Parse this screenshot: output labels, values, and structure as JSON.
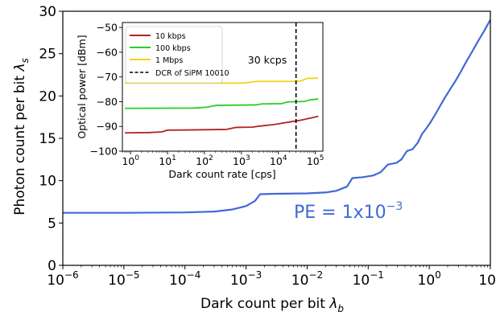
{
  "chart_data": [
    {
      "type": "line",
      "xlabel_main": "Dark count per bit ",
      "xlabel_sym": "λ",
      "xlabel_sub": "b",
      "ylabel_main": "Photon count per bit ",
      "ylabel_sym": "λ",
      "ylabel_sub": "s",
      "x_scale": "log",
      "xlim": [
        1e-06,
        10
      ],
      "ylim": [
        0,
        30
      ],
      "x_ticks": [
        {
          "base": "10",
          "exp": "−6",
          "value": 1e-06
        },
        {
          "base": "10",
          "exp": "−5",
          "value": 1e-05
        },
        {
          "base": "10",
          "exp": "−4",
          "value": 0.0001
        },
        {
          "base": "10",
          "exp": "−3",
          "value": 0.001
        },
        {
          "base": "10",
          "exp": "−2",
          "value": 0.01
        },
        {
          "base": "10",
          "exp": "−1",
          "value": 0.1
        },
        {
          "base": "10",
          "exp": "0",
          "value": 1
        },
        {
          "base": "10",
          "exp": "1",
          "value": 10
        }
      ],
      "y_ticks": [
        "0",
        "5",
        "10",
        "15",
        "20",
        "25",
        "30"
      ],
      "annotation": {
        "prefix": "PE = 1x10",
        "exp": "−3"
      },
      "series": [
        {
          "color": "#4169d6",
          "points": [
            [
              1e-06,
              6.2
            ],
            [
              1e-05,
              6.2
            ],
            [
              0.0001,
              6.25
            ],
            [
              0.0003,
              6.35
            ],
            [
              0.0006,
              6.6
            ],
            [
              0.001,
              7.0
            ],
            [
              0.0014,
              7.6
            ],
            [
              0.0017,
              8.4
            ],
            [
              0.003,
              8.45
            ],
            [
              0.01,
              8.5
            ],
            [
              0.02,
              8.6
            ],
            [
              0.03,
              8.8
            ],
            [
              0.045,
              9.3
            ],
            [
              0.055,
              10.3
            ],
            [
              0.08,
              10.4
            ],
            [
              0.12,
              10.6
            ],
            [
              0.16,
              11.0
            ],
            [
              0.21,
              11.9
            ],
            [
              0.29,
              12.1
            ],
            [
              0.35,
              12.5
            ],
            [
              0.43,
              13.5
            ],
            [
              0.53,
              13.7
            ],
            [
              0.65,
              14.5
            ],
            [
              0.76,
              15.5
            ],
            [
              0.9,
              16.2
            ],
            [
              1.05,
              16.9
            ],
            [
              1.25,
              17.8
            ],
            [
              1.5,
              18.8
            ],
            [
              1.8,
              19.8
            ],
            [
              2.2,
              20.8
            ],
            [
              2.7,
              21.8
            ],
            [
              3.3,
              22.9
            ],
            [
              4.0,
              24.0
            ],
            [
              5.0,
              25.2
            ],
            [
              6.2,
              26.4
            ],
            [
              7.8,
              27.6
            ],
            [
              10,
              29.0
            ]
          ]
        }
      ]
    },
    {
      "type": "line",
      "xlabel": "Dark count rate [cps]",
      "ylabel": "Optical power [dBm]",
      "x_scale": "log",
      "xlim": [
        0.6,
        160000.0
      ],
      "ylim": [
        -100,
        -48
      ],
      "x_ticks": [
        {
          "base": "10",
          "exp": "0",
          "value": 1
        },
        {
          "base": "10",
          "exp": "1",
          "value": 10
        },
        {
          "base": "10",
          "exp": "2",
          "value": 100
        },
        {
          "base": "10",
          "exp": "3",
          "value": 1000
        },
        {
          "base": "10",
          "exp": "4",
          "value": 10000
        },
        {
          "base": "10",
          "exp": "5",
          "value": 100000
        }
      ],
      "y_ticks": [
        {
          "label": "−50",
          "value": -50
        },
        {
          "label": "−60",
          "value": -60
        },
        {
          "label": "−70",
          "value": -70
        },
        {
          "label": "−80",
          "value": -80
        },
        {
          "label": "−90",
          "value": -90
        },
        {
          "label": "−100",
          "value": -100
        }
      ],
      "annotation": "30 kcps",
      "vline": {
        "x": 30000,
        "label": "DCR of SiPM 10010",
        "color": "#000000"
      },
      "legend_position": "top-left",
      "series": [
        {
          "name": "10 kbps",
          "color": "#b22222",
          "points": [
            [
              0.7,
              -92.6
            ],
            [
              3,
              -92.5
            ],
            [
              7,
              -92.2
            ],
            [
              10,
              -91.5
            ],
            [
              50,
              -91.4
            ],
            [
              400,
              -91.2
            ],
            [
              700,
              -90.4
            ],
            [
              2000,
              -90.3
            ],
            [
              3000,
              -89.9
            ],
            [
              8000,
              -89.2
            ],
            [
              20000,
              -88.2
            ],
            [
              40000,
              -87.5
            ],
            [
              80000,
              -86.5
            ],
            [
              120000,
              -85.9
            ]
          ]
        },
        {
          "name": "100 kbps",
          "color": "#2ecc2e",
          "points": [
            [
              0.7,
              -82.7
            ],
            [
              50,
              -82.6
            ],
            [
              120,
              -82.2
            ],
            [
              200,
              -81.5
            ],
            [
              2500,
              -81.3
            ],
            [
              3500,
              -80.9
            ],
            [
              12000,
              -80.8
            ],
            [
              18000,
              -80.1
            ],
            [
              50000,
              -79.9
            ],
            [
              70000,
              -79.3
            ],
            [
              120000,
              -78.9
            ]
          ]
        },
        {
          "name": "1 Mbps",
          "color": "#f2d21b",
          "points": [
            [
              0.7,
              -72.5
            ],
            [
              1000,
              -72.5
            ],
            [
              1600,
              -72.2
            ],
            [
              2500,
              -71.8
            ],
            [
              30000,
              -71.8
            ],
            [
              40000,
              -71.6
            ],
            [
              60000,
              -70.6
            ],
            [
              120000,
              -70.5
            ]
          ]
        }
      ]
    }
  ]
}
